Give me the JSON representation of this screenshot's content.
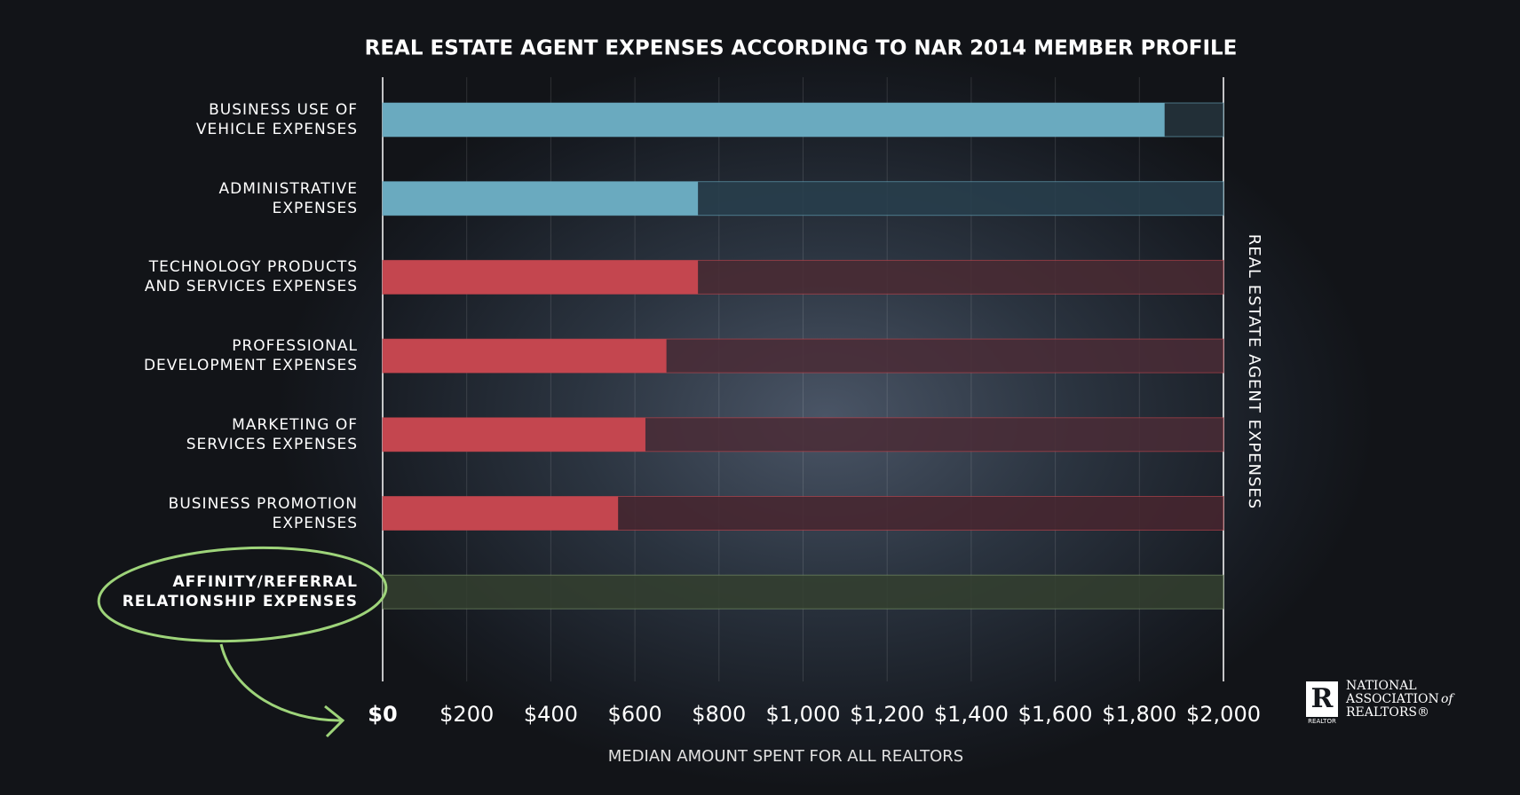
{
  "chart_data": {
    "type": "bar",
    "orientation": "horizontal",
    "title": "REAL ESTATE AGENT EXPENSES ACCORDING TO NAR 2014 MEMBER PROFILE",
    "xlabel": "MEDIAN AMOUNT SPENT FOR ALL REALTORS",
    "right_label": "REAL ESTATE AGENT EXPENSES",
    "categories": [
      "BUSINESS USE OF\nVEHICLE EXPENSES",
      "ADMINISTRATIVE\nEXPENSES",
      "TECHNOLOGY PRODUCTS\nAND SERVICES EXPENSES",
      "PROFESSIONAL\nDEVELOPMENT EXPENSES",
      "MARKETING OF\nSERVICES EXPENSES",
      "BUSINESS PROMOTION\nEXPENSES",
      "AFFINITY/REFERRAL\nRELATIONSHIP EXPENSES"
    ],
    "values": [
      1860,
      750,
      750,
      675,
      625,
      560,
      0
    ],
    "colors": [
      "#6aaabf",
      "#6aaabf",
      "#c4464f",
      "#c4464f",
      "#c4464f",
      "#c4464f",
      "#7f9a6a"
    ],
    "track_colors": [
      "#26343d",
      "#28404d",
      "#4a2a33",
      "#4a2c36",
      "#4a2c36",
      "#48262f",
      "#34402f"
    ],
    "highlight_index": 6,
    "xlim": [
      0,
      2000
    ],
    "xticks": [
      {
        "value": 0,
        "label": "$0"
      },
      {
        "value": 200,
        "label": "$200"
      },
      {
        "value": 400,
        "label": "$400"
      },
      {
        "value": 600,
        "label": "$600"
      },
      {
        "value": 800,
        "label": "$800"
      },
      {
        "value": 1000,
        "label": "$1,000"
      },
      {
        "value": 1200,
        "label": "$1,200"
      },
      {
        "value": 1400,
        "label": "$1,400"
      },
      {
        "value": 1600,
        "label": "$1,600"
      },
      {
        "value": 1800,
        "label": "$1,800"
      },
      {
        "value": 2000,
        "label": "$2,000"
      }
    ],
    "grid": true
  },
  "logo": {
    "line1": "NATIONAL",
    "line2": "ASSOCIATION",
    "line2b": "of",
    "line3": "REALTORS®",
    "mark": "REALTOR"
  }
}
